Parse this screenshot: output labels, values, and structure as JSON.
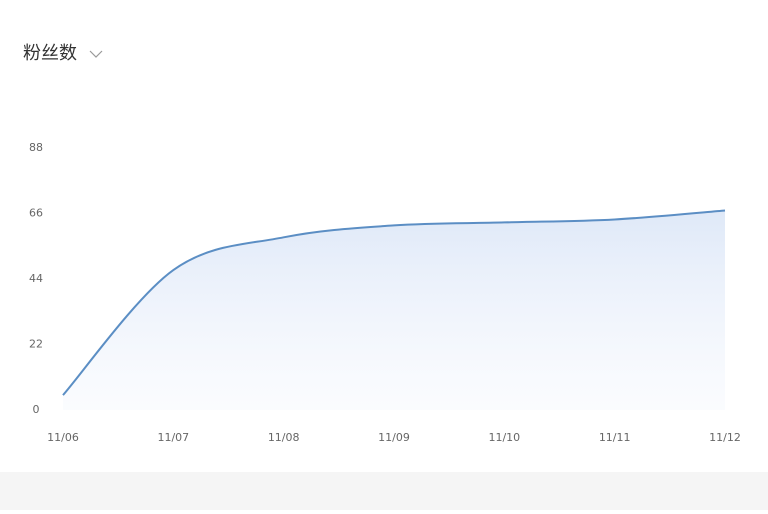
{
  "chart_data": {
    "type": "area",
    "title": "粉丝数",
    "categories": [
      "11/06",
      "11/07",
      "11/08",
      "11/09",
      "11/10",
      "11/11",
      "11/12"
    ],
    "values": [
      5,
      47,
      58,
      62,
      63,
      64,
      67
    ],
    "color": "#5b8ec4",
    "ylim": [
      0,
      88
    ],
    "yticks": [
      0,
      22,
      44,
      66,
      88
    ]
  }
}
